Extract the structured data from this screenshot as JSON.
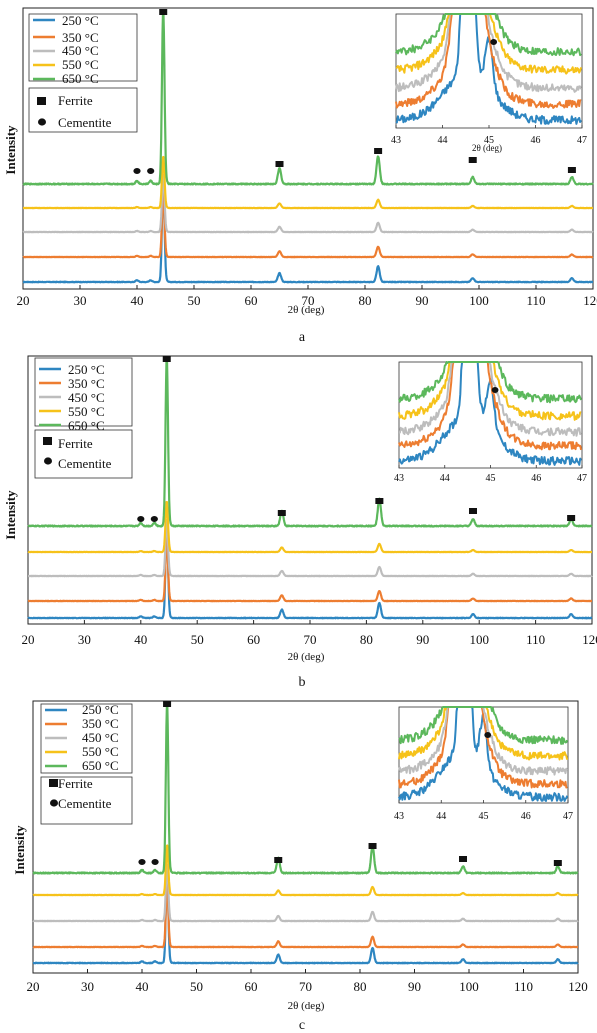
{
  "colors": {
    "s250": "#2e86c1",
    "s350": "#ed7d31",
    "s450": "#bdbdbd",
    "s550": "#f6c21a",
    "s650": "#5cb85c"
  },
  "icons": {
    "ferrite": "filled-square-marker",
    "cementite": "filled-circle-marker"
  },
  "chart_data": [
    {
      "type": "line",
      "panel_label": "a",
      "xlabel": "2θ (deg)",
      "ylabel": "Intensity",
      "xlim": [
        20,
        120
      ],
      "xticks": [
        "20",
        "30",
        "40",
        "50",
        "60",
        "70",
        "80",
        "90",
        "100",
        "110",
        "120"
      ],
      "series": [
        {
          "name": "250 °C"
        },
        {
          "name": "350 °C"
        },
        {
          "name": "450 °C"
        },
        {
          "name": "550 °C"
        },
        {
          "name": "650 °C"
        }
      ],
      "phase_legend": [
        "Ferrite",
        "Cementite"
      ],
      "ferrite_peaks_2theta": [
        44.6,
        65.0,
        82.3,
        98.9,
        116.3
      ],
      "cementite_peaks_2theta": [
        40.0,
        42.4,
        45.0
      ],
      "relative_peak_heights": [
        1.0,
        0.09,
        0.16,
        0.04,
        0.04
      ],
      "inset": {
        "xlim": [
          43,
          47
        ],
        "xticks": [
          "43",
          "44",
          "45",
          "46",
          "47"
        ],
        "xlabel": "2θ (deg)"
      },
      "grid": false,
      "legend_position": "top-left"
    },
    {
      "type": "line",
      "panel_label": "b",
      "xlabel": "2θ (deg)",
      "ylabel": "Intensity",
      "xlim": [
        20,
        120
      ],
      "xticks": [
        "20",
        "30",
        "40",
        "50",
        "60",
        "70",
        "80",
        "90",
        "100",
        "110",
        "120"
      ],
      "series": [
        {
          "name": "250 °C"
        },
        {
          "name": "350 °C"
        },
        {
          "name": "450 °C"
        },
        {
          "name": "550 °C"
        },
        {
          "name": "650 °C"
        }
      ],
      "phase_legend": [
        "Ferrite",
        "Cementite"
      ],
      "ferrite_peaks_2theta": [
        44.6,
        65.0,
        82.3,
        98.9,
        116.3
      ],
      "cementite_peaks_2theta": [
        40.0,
        42.4,
        45.0
      ],
      "relative_peak_heights": [
        1.0,
        0.09,
        0.16,
        0.04,
        0.04
      ],
      "inset": {
        "xlim": [
          43,
          47
        ],
        "xticks": [
          "43",
          "44",
          "45",
          "46",
          "47"
        ],
        "xlabel": ""
      },
      "grid": false,
      "legend_position": "top-left"
    },
    {
      "type": "line",
      "panel_label": "c",
      "xlabel": "2θ (deg)",
      "ylabel": "Intensity",
      "xlim": [
        20,
        120
      ],
      "xticks": [
        "20",
        "30",
        "40",
        "50",
        "60",
        "70",
        "80",
        "90",
        "100",
        "110",
        "120"
      ],
      "series": [
        {
          "name": "250 °C"
        },
        {
          "name": "350 °C"
        },
        {
          "name": "450 °C"
        },
        {
          "name": "550 °C"
        },
        {
          "name": "650 °C"
        }
      ],
      "phase_legend": [
        "Ferrite",
        "Cementite"
      ],
      "ferrite_peaks_2theta": [
        44.6,
        65.0,
        82.3,
        98.9,
        116.3
      ],
      "cementite_peaks_2theta": [
        40.0,
        42.4,
        45.0
      ],
      "relative_peak_heights": [
        1.0,
        0.09,
        0.16,
        0.04,
        0.04
      ],
      "inset": {
        "xlim": [
          43,
          47
        ],
        "xticks": [
          "43",
          "44",
          "45",
          "46",
          "47"
        ],
        "xlabel": ""
      },
      "grid": false,
      "legend_position": "top-left"
    }
  ]
}
